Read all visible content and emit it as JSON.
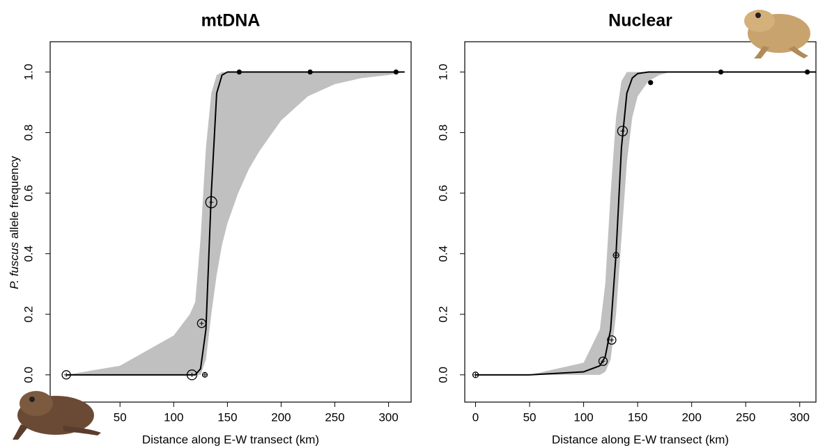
{
  "y_label_italic": "P. fuscus",
  "y_label_rest": " allele frequency",
  "chart_data": [
    {
      "type": "cline",
      "title": "mtDNA",
      "x_label": "Distance along E-W transect (km)",
      "xlim": [
        -15,
        321
      ],
      "ylim": [
        -0.09,
        1.1
      ],
      "xticks": [
        50,
        100,
        150,
        200,
        250,
        300
      ],
      "yticks": [
        {
          "value": 0,
          "label": "0.0"
        },
        {
          "value": 0.2,
          "label": "0.2"
        },
        {
          "value": 0.4,
          "label": "0.4"
        },
        {
          "value": 0.6,
          "label": "0.6"
        },
        {
          "value": 0.8,
          "label": "0.8"
        },
        {
          "value": 1,
          "label": "1.0"
        }
      ],
      "band_color": "#c0c0c0",
      "line_color": "#000000",
      "x": [
        0,
        50,
        100,
        115,
        120,
        125,
        130,
        135,
        140,
        145,
        150,
        160,
        170,
        180,
        200,
        225,
        250,
        275,
        300,
        315
      ],
      "ci_upper": [
        0,
        0.03,
        0.13,
        0.2,
        0.24,
        0.45,
        0.75,
        0.93,
        0.99,
        1,
        1,
        1,
        1,
        1,
        1,
        1,
        1,
        1,
        1,
        1
      ],
      "ci_lower": [
        0,
        0,
        0,
        0,
        0,
        0,
        0.05,
        0.2,
        0.33,
        0.43,
        0.5,
        0.6,
        0.68,
        0.74,
        0.84,
        0.92,
        0.96,
        0.98,
        0.99,
        1
      ],
      "curve": [
        0,
        0,
        0,
        0,
        0,
        0.02,
        0.15,
        0.6,
        0.93,
        0.99,
        1,
        1,
        1,
        1,
        1,
        1,
        1,
        1,
        1,
        1
      ],
      "points": {
        "x": [
          0,
          117,
          129,
          126,
          135,
          161,
          227,
          307
        ],
        "y": [
          0,
          0,
          0,
          0.17,
          0.57,
          1,
          1,
          1
        ],
        "sizes": [
          3,
          3.5,
          1.7,
          3,
          4,
          1.5,
          1.5,
          1.5
        ]
      }
    },
    {
      "type": "cline",
      "title": "Nuclear",
      "x_label": "Distance along E-W transect (km)",
      "xlim": [
        -10,
        315
      ],
      "ylim": [
        -0.09,
        1.1
      ],
      "xticks": [
        0,
        50,
        100,
        150,
        200,
        250,
        300
      ],
      "yticks": [
        {
          "value": 0,
          "label": "0.0"
        },
        {
          "value": 0.2,
          "label": "0.2"
        },
        {
          "value": 0.4,
          "label": "0.4"
        },
        {
          "value": 0.6,
          "label": "0.6"
        },
        {
          "value": 0.8,
          "label": "0.8"
        },
        {
          "value": 1,
          "label": "1.0"
        }
      ],
      "band_color": "#c0c0c0",
      "line_color": "#000000",
      "x": [
        0,
        50,
        100,
        115,
        120,
        125,
        130,
        135,
        140,
        145,
        150,
        160,
        170,
        180,
        200,
        225,
        250,
        275,
        300,
        315
      ],
      "ci_upper": [
        0,
        0,
        0.04,
        0.15,
        0.3,
        0.6,
        0.85,
        0.97,
        1,
        1,
        1,
        1,
        1,
        1,
        1,
        1,
        1,
        1,
        1,
        1
      ],
      "ci_lower": [
        0,
        0,
        0,
        0,
        0.01,
        0.05,
        0.2,
        0.45,
        0.7,
        0.85,
        0.92,
        0.97,
        0.99,
        1,
        1,
        1,
        1,
        1,
        1,
        1
      ],
      "curve": [
        0,
        0,
        0.01,
        0.03,
        0.06,
        0.15,
        0.4,
        0.75,
        0.93,
        0.98,
        0.995,
        1,
        1,
        1,
        1,
        1,
        1,
        1,
        1,
        1
      ],
      "points": {
        "x": [
          0,
          118,
          126,
          130,
          136,
          162,
          227,
          307
        ],
        "y": [
          0,
          0.045,
          0.115,
          0.395,
          0.805,
          0.965,
          1,
          1
        ],
        "sizes": [
          2,
          3,
          3,
          2,
          3.5,
          1.5,
          1.5,
          1.5
        ]
      }
    }
  ]
}
